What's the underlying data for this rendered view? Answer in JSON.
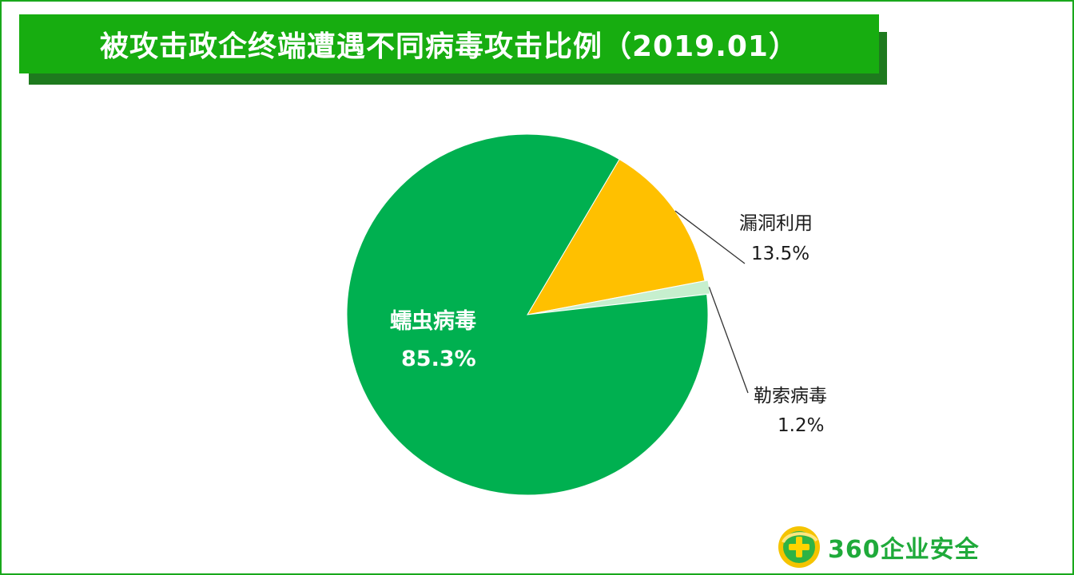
{
  "title": "被攻击政企终端遭遇不同病毒攻击比例（2019.01）",
  "chart_data": {
    "type": "pie",
    "title": "被攻击政企终端遭遇不同病毒攻击比例（2019.01）",
    "slices": [
      {
        "label": "蠕虫病毒",
        "value": 85.3,
        "value_label": "85.3%",
        "color": "#00b050"
      },
      {
        "label": "漏洞利用",
        "value": 13.5,
        "value_label": "13.5%",
        "color": "#ffc000"
      },
      {
        "label": "勒索病毒",
        "value": 1.2,
        "value_label": "1.2%",
        "color": "#c6efce"
      }
    ]
  },
  "logo": {
    "text": "360企业安全",
    "icon": "360-plus-icon"
  },
  "colors": {
    "title_bar": "#17ad10",
    "title_shadow": "#1e7a1e",
    "frame": "#19a81c"
  }
}
